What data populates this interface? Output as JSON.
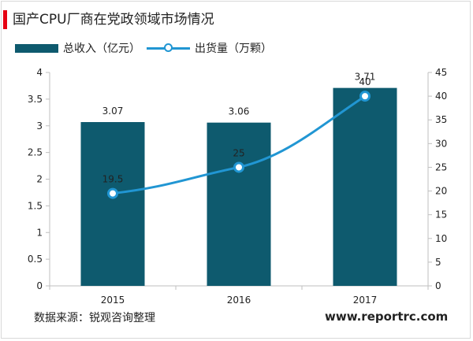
{
  "title": "国产CPU厂商在党政领域市场情况",
  "source": "数据来源：锐观咨询整理",
  "website": "www.reportrc.com",
  "colors": {
    "bar": "#0e5a6e",
    "line": "#2196d3",
    "accent": "#e60012"
  },
  "chart_data": {
    "type": "bar",
    "categories": [
      "2015",
      "2016",
      "2017"
    ],
    "legend_position": "top-left",
    "grid": false,
    "series": [
      {
        "name": "总收入（亿元）",
        "type": "bar",
        "axis": "left",
        "values": [
          3.07,
          3.06,
          3.71
        ],
        "labels": [
          "3.07",
          "3.06",
          "3.71"
        ]
      },
      {
        "name": "出货量（万颗）",
        "type": "line",
        "axis": "right",
        "values": [
          19.5,
          25,
          40
        ],
        "labels": [
          "19.5",
          "25",
          "40"
        ]
      }
    ],
    "y_left": {
      "min": 0,
      "max": 4,
      "ticks": [
        "0",
        "0.5",
        "1",
        "1.5",
        "2",
        "2.5",
        "3",
        "3.5",
        "4"
      ]
    },
    "y_right": {
      "min": 0,
      "max": 45,
      "ticks": [
        "0",
        "5",
        "10",
        "15",
        "20",
        "25",
        "30",
        "35",
        "40",
        "45"
      ]
    }
  }
}
